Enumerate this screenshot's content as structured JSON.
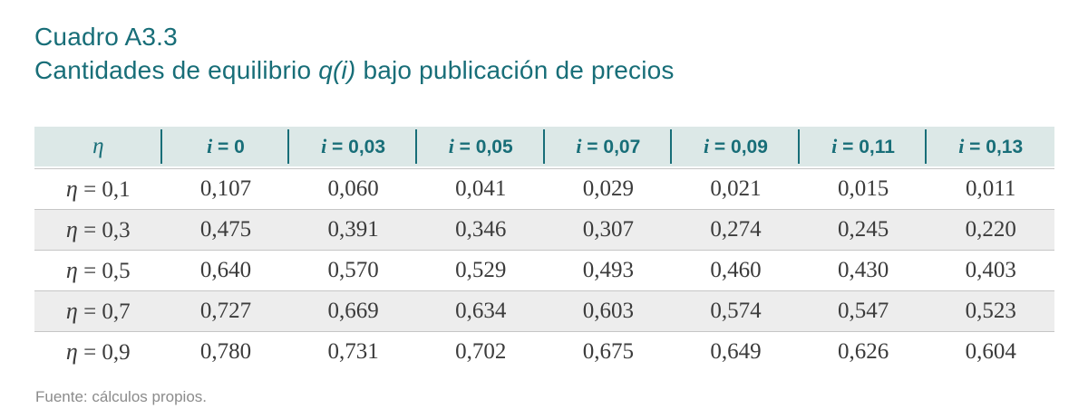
{
  "page": {
    "title_line1": "Cuadro A3.3",
    "title_line2": {
      "prefix": "Cantidades de equilibrio ",
      "math": "q(i)",
      "suffix": " bajo publicación de precios"
    },
    "source_note": "Fuente: cálculos propios."
  },
  "colors": {
    "teal": "#186e78",
    "header_bg": "#dce8e7",
    "stripe_bg": "#ededed",
    "row_rule": "#c6c6c6",
    "body_text": "#3b3b3b",
    "note_text": "#8b8b8b"
  },
  "table": {
    "columns": [
      {
        "symbol": "η",
        "rest": ""
      },
      {
        "symbol": "i",
        "rest": " = 0"
      },
      {
        "symbol": "i",
        "rest": " = 0,03"
      },
      {
        "symbol": "i",
        "rest": " = 0,05"
      },
      {
        "symbol": "i",
        "rest": " = 0,07"
      },
      {
        "symbol": "i",
        "rest": " = 0,09"
      },
      {
        "symbol": "i",
        "rest": " = 0,11"
      },
      {
        "symbol": "i",
        "rest": " = 0,13"
      }
    ],
    "rows": [
      {
        "label": {
          "symbol": "η",
          "rest": " = 0,1"
        },
        "values": [
          "0,107",
          "0,060",
          "0,041",
          "0,029",
          "0,021",
          "0,015",
          "0,011"
        ]
      },
      {
        "label": {
          "symbol": "η",
          "rest": " = 0,3"
        },
        "values": [
          "0,475",
          "0,391",
          "0,346",
          "0,307",
          "0,274",
          "0,245",
          "0,220"
        ]
      },
      {
        "label": {
          "symbol": "η",
          "rest": " = 0,5"
        },
        "values": [
          "0,640",
          "0,570",
          "0,529",
          "0,493",
          "0,460",
          "0,430",
          "0,403"
        ]
      },
      {
        "label": {
          "symbol": "η",
          "rest": " = 0,7"
        },
        "values": [
          "0,727",
          "0,669",
          "0,634",
          "0,603",
          "0,574",
          "0,547",
          "0,523"
        ]
      },
      {
        "label": {
          "symbol": "η",
          "rest": " = 0,9"
        },
        "values": [
          "0,780",
          "0,731",
          "0,702",
          "0,675",
          "0,649",
          "0,626",
          "0,604"
        ]
      }
    ]
  }
}
